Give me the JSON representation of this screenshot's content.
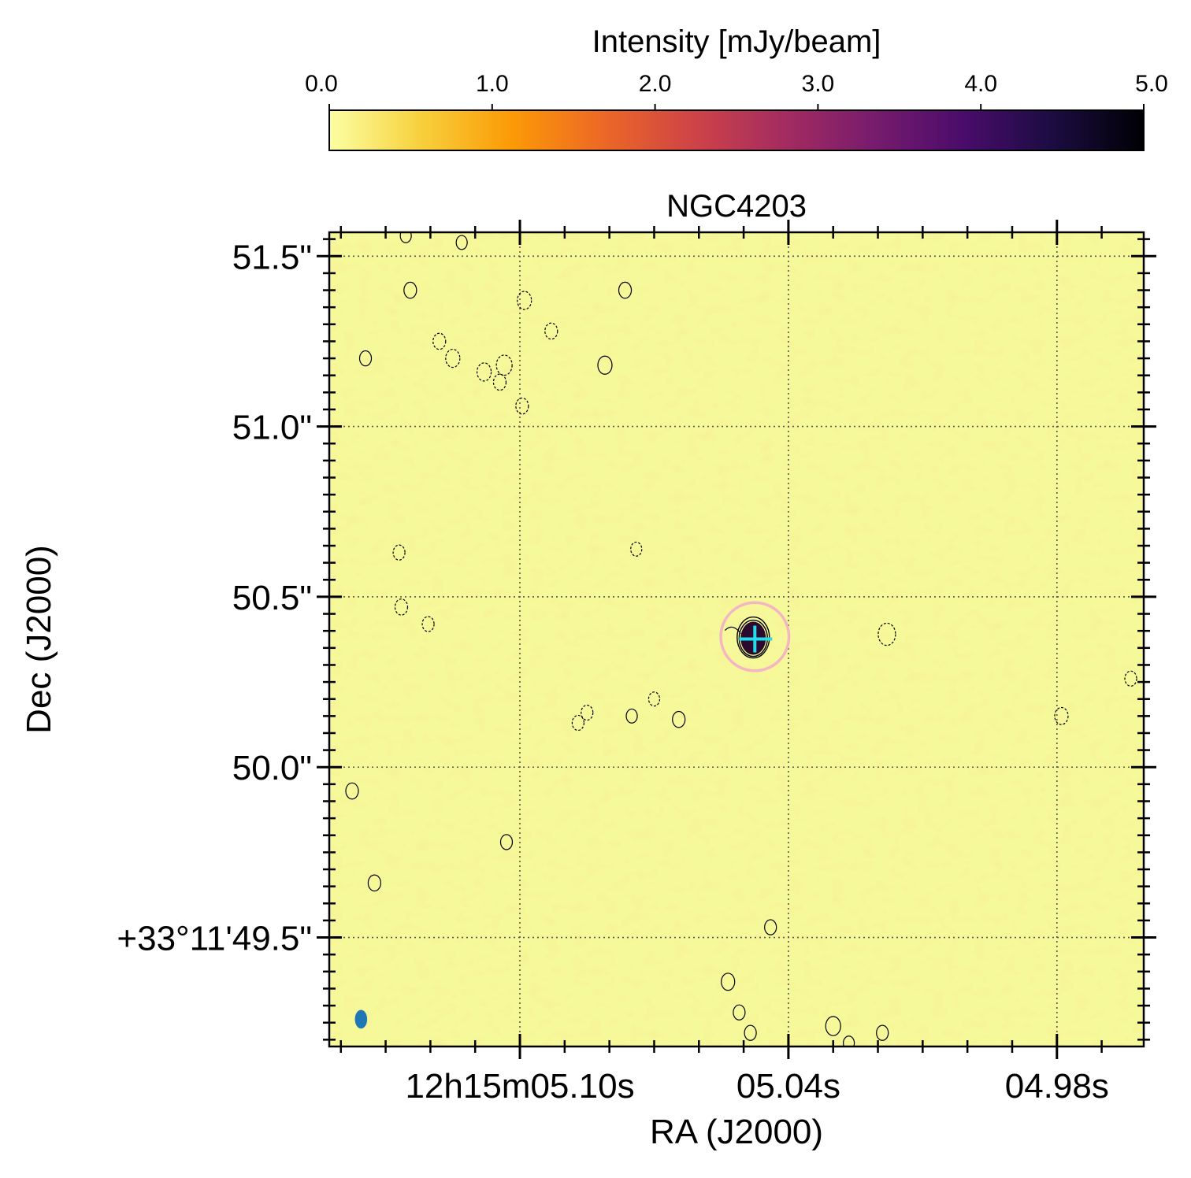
{
  "chart_data": {
    "type": "heatmap",
    "title": "NGC4203",
    "xlabel": "RA (J2000)",
    "ylabel": "Dec (J2000)",
    "xlim_sec": [
      5.1426,
      4.9606
    ],
    "ylim_arcsec": [
      49.18,
      51.57
    ],
    "x_ticks": [
      {
        "value": 5.1,
        "label": "12h15m05.10s"
      },
      {
        "value": 5.04,
        "label": "05.04s"
      },
      {
        "value": 4.98,
        "label": "04.98s"
      }
    ],
    "y_ticks": [
      {
        "value": 51.5,
        "label": "51.5\""
      },
      {
        "value": 51.0,
        "label": "51.0\""
      },
      {
        "value": 50.5,
        "label": "50.5\""
      },
      {
        "value": 50.0,
        "label": "50.0\""
      },
      {
        "value": 49.5,
        "label": "+33°11'49.5\""
      }
    ],
    "grid": true,
    "colorbar": {
      "label": "Intensity [mJy/beam]",
      "min": 0.0,
      "max": 5.0,
      "colormap": "inferno_r",
      "ticks": [
        "0.0",
        "1.0",
        "2.0",
        "3.0",
        "4.0",
        "5.0"
      ],
      "stops": [
        "#fcffa4",
        "#f7d13d",
        "#fb9b06",
        "#ed6925",
        "#cf4446",
        "#a52c60",
        "#781c6d",
        "#4a0c6b",
        "#1b0c41",
        "#000004"
      ]
    },
    "source": {
      "ra_sec": 5.0475,
      "dec_arcsec": 50.383,
      "circle_radius_arcsec": 0.1
    },
    "beam": {
      "ra_sec": 5.1355,
      "dec_arcsec": 49.26,
      "major_arcsec": 0.055,
      "minor_arcsec": 0.036
    },
    "contours": [
      {
        "ra": 5.1345,
        "dec": 51.2,
        "style": "solid",
        "size": 0.7
      },
      {
        "ra": 5.1255,
        "dec": 51.56,
        "style": "solid",
        "size": 0.6
      },
      {
        "ra": 5.1245,
        "dec": 51.4,
        "style": "solid",
        "size": 0.8
      },
      {
        "ra": 5.113,
        "dec": 51.54,
        "style": "solid",
        "size": 0.6
      },
      {
        "ra": 5.118,
        "dec": 51.25,
        "style": "dashed",
        "size": 0.8
      },
      {
        "ra": 5.115,
        "dec": 51.2,
        "style": "dashed",
        "size": 1.0
      },
      {
        "ra": 5.108,
        "dec": 51.16,
        "style": "dashed",
        "size": 1.0
      },
      {
        "ra": 5.1035,
        "dec": 51.18,
        "style": "dashed",
        "size": 1.2
      },
      {
        "ra": 5.1045,
        "dec": 51.13,
        "style": "dashed",
        "size": 0.8
      },
      {
        "ra": 5.099,
        "dec": 51.37,
        "style": "dashed",
        "size": 1.0
      },
      {
        "ra": 5.093,
        "dec": 51.28,
        "style": "dashed",
        "size": 0.8
      },
      {
        "ra": 5.081,
        "dec": 51.18,
        "style": "solid",
        "size": 1.0
      },
      {
        "ra": 5.0765,
        "dec": 51.4,
        "style": "solid",
        "size": 0.8
      },
      {
        "ra": 5.0995,
        "dec": 51.06,
        "style": "dashed",
        "size": 0.8
      },
      {
        "ra": 5.127,
        "dec": 50.63,
        "style": "dashed",
        "size": 0.7
      },
      {
        "ra": 5.1265,
        "dec": 50.47,
        "style": "dashed",
        "size": 0.8
      },
      {
        "ra": 5.1205,
        "dec": 50.42,
        "style": "dashed",
        "size": 0.7
      },
      {
        "ra": 5.085,
        "dec": 50.16,
        "style": "dashed",
        "size": 0.7
      },
      {
        "ra": 5.087,
        "dec": 50.13,
        "style": "dashed",
        "size": 0.7
      },
      {
        "ra": 5.074,
        "dec": 50.64,
        "style": "dashed",
        "size": 0.6
      },
      {
        "ra": 5.07,
        "dec": 50.2,
        "style": "dashed",
        "size": 0.6
      },
      {
        "ra": 5.075,
        "dec": 50.15,
        "style": "solid",
        "size": 0.6
      },
      {
        "ra": 5.0645,
        "dec": 50.14,
        "style": "solid",
        "size": 0.8
      },
      {
        "ra": 5.018,
        "dec": 50.39,
        "style": "dashed",
        "size": 1.4
      },
      {
        "ra": 4.979,
        "dec": 50.15,
        "style": "dashed",
        "size": 0.9
      },
      {
        "ra": 4.9635,
        "dec": 50.26,
        "style": "dashed",
        "size": 0.7
      },
      {
        "ra": 5.1375,
        "dec": 49.93,
        "style": "solid",
        "size": 0.8
      },
      {
        "ra": 5.103,
        "dec": 49.78,
        "style": "solid",
        "size": 0.7
      },
      {
        "ra": 5.1325,
        "dec": 49.66,
        "style": "solid",
        "size": 0.8
      },
      {
        "ra": 5.0535,
        "dec": 49.37,
        "style": "solid",
        "size": 0.9
      },
      {
        "ra": 5.0485,
        "dec": 49.22,
        "style": "solid",
        "size": 0.7
      },
      {
        "ra": 5.051,
        "dec": 49.28,
        "style": "solid",
        "size": 0.7
      },
      {
        "ra": 5.044,
        "dec": 49.53,
        "style": "solid",
        "size": 0.7
      },
      {
        "ra": 5.03,
        "dec": 49.24,
        "style": "solid",
        "size": 1.1
      },
      {
        "ra": 5.019,
        "dec": 49.22,
        "style": "solid",
        "size": 0.7
      },
      {
        "ra": 5.0265,
        "dec": 49.19,
        "style": "solid",
        "size": 0.6
      }
    ]
  }
}
